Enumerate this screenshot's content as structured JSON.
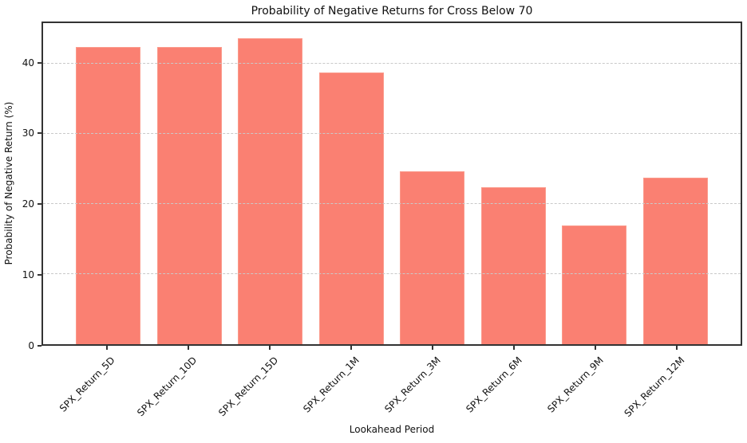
{
  "chart_data": {
    "type": "bar",
    "title": "Probability of Negative Returns for Cross Below 70",
    "xlabel": "Lookahead Period",
    "ylabel": "Probability of Negative Return (%)",
    "categories": [
      "SPX_Return_5D",
      "SPX_Return_10D",
      "SPX_Return_15D",
      "SPX_Return_1M",
      "SPX_Return_3M",
      "SPX_Return_6M",
      "SPX_Return_9M",
      "SPX_Return_12M"
    ],
    "values": [
      42.4,
      42.4,
      43.6,
      38.8,
      24.7,
      22.4,
      16.9,
      23.8
    ],
    "yticks": [
      0,
      10,
      20,
      30,
      40
    ],
    "ylim": [
      0,
      45.8
    ],
    "bar_color": "#fa8072",
    "grid": "horizontal-dashed",
    "grid_color": "#c9c9c9",
    "grid_on_top": true,
    "legend": "none",
    "x_tick_rotation_deg": 45
  }
}
